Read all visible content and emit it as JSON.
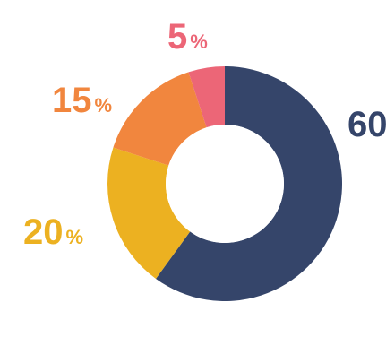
{
  "chart_data": {
    "type": "pie",
    "variant": "donut",
    "categories": [
      "",
      "",
      "",
      ""
    ],
    "values": [
      60,
      20,
      15,
      5
    ],
    "value_labels": [
      "60",
      "20",
      "15",
      "5"
    ],
    "unit": "%",
    "colors": [
      "#35456a",
      "#ecb121",
      "#f1863e",
      "#ec6677"
    ],
    "start_angle_deg": 0,
    "direction": "clockwise",
    "legend": "none"
  }
}
